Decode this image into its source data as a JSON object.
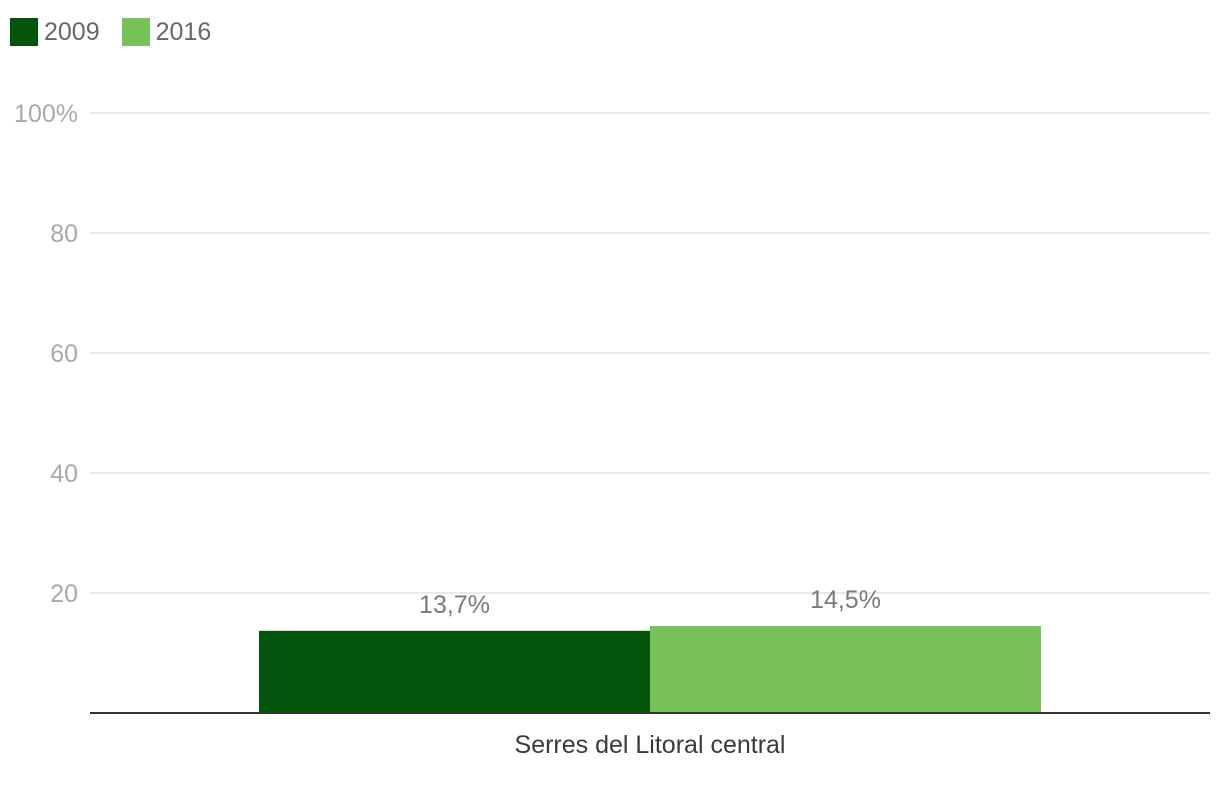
{
  "colors": {
    "series_2009": "#02550a",
    "series_2016": "#78c158",
    "gridline": "#e2e2e2",
    "axis": "#333333"
  },
  "legend": {
    "items": [
      {
        "label": "2009",
        "color": "#02550a"
      },
      {
        "label": "2016",
        "color": "#78c158"
      }
    ]
  },
  "chart_data": {
    "type": "bar",
    "categories": [
      "Serres del Litoral central"
    ],
    "series": [
      {
        "name": "2009",
        "values": [
          13.7
        ],
        "labels": [
          "13,7%"
        ],
        "color": "#02550a"
      },
      {
        "name": "2016",
        "values": [
          14.5
        ],
        "labels": [
          "14,5%"
        ],
        "color": "#78c158"
      }
    ],
    "ylim": [
      0,
      100
    ],
    "yticks": [
      {
        "value": 20,
        "label": "20"
      },
      {
        "value": 40,
        "label": "40"
      },
      {
        "value": 60,
        "label": "60"
      },
      {
        "value": 80,
        "label": "80"
      },
      {
        "value": 100,
        "label": "100%"
      }
    ],
    "grid": true,
    "legend_position": "top-left",
    "title": "",
    "xlabel": "",
    "ylabel": ""
  }
}
